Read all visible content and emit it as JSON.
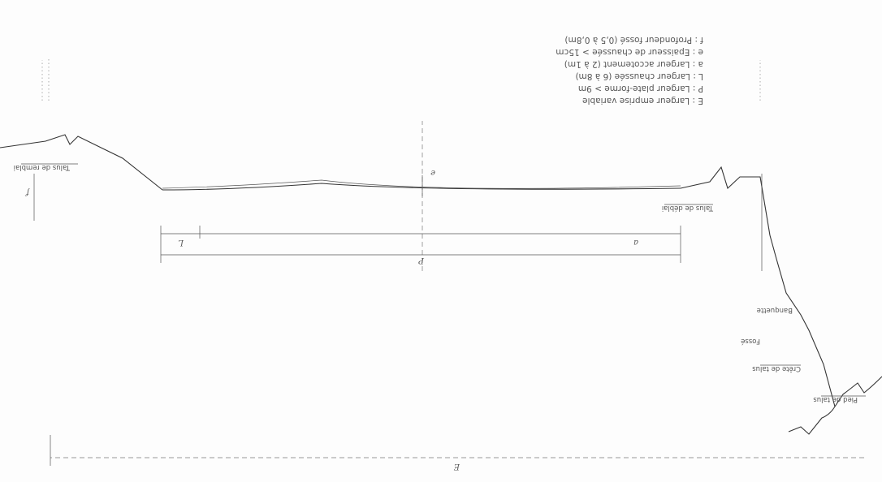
{
  "legend": {
    "items": [
      "E : Largeur emprise variable",
      "P : Largeur plate-forme > 9m",
      "L : Largeur chaussée (6 à 8m)",
      "a : Largeur accotement (2 à 1m)",
      "e : Epaisseur de chaussée > 15cm",
      "f : Profondeur fossé (0,5 à 0,8m)"
    ]
  },
  "labels": {
    "pied_de_talus": "Pied de talus",
    "crete_de_talus": "Crête de talus",
    "fosse": "Fossé",
    "banquette": "Banquette",
    "talus_de_remblai": "Talus de remblai",
    "talus_de_deblai": "Talus de déblai",
    "crete_de_talus_right": "Crête de talus"
  },
  "symbols": {
    "E": "E",
    "P": "P",
    "L": "L",
    "a": "a",
    "e": "e",
    "f": "f"
  }
}
